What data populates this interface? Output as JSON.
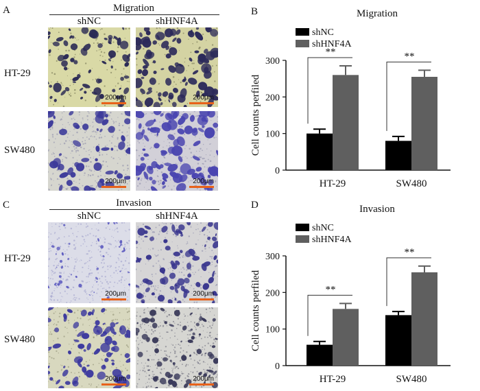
{
  "colors": {
    "shNC": "#000000",
    "shHNF4A": "#5f5f5f",
    "scale_bar": "#e8621a",
    "stain_dense": "#2e2a7a",
    "stain_light": "#7a78c8"
  },
  "panel_a": {
    "letter": "A",
    "title": "Migration",
    "columns": [
      "shNC",
      "shHNF4A"
    ],
    "rows": [
      "HT-29",
      "SW480"
    ],
    "scale_label": "200μm"
  },
  "panel_c": {
    "letter": "C",
    "title": "Invasion",
    "columns": [
      "shNC",
      "shHNF4A"
    ],
    "rows": [
      "HT-29",
      "SW480"
    ],
    "scale_label": "200μm"
  },
  "chart_data": [
    {
      "panel": "B",
      "type": "bar",
      "title": "Migration",
      "ylabel": "Cell counts perfiled",
      "categories": [
        "HT-29",
        "SW480"
      ],
      "ylim": [
        0,
        300
      ],
      "yticks": [
        0,
        100,
        200,
        300
      ],
      "series": [
        {
          "name": "shNC",
          "values": [
            100,
            80
          ],
          "errors": [
            12,
            12
          ]
        },
        {
          "name": "shHNF4A",
          "values": [
            260,
            255
          ],
          "errors": [
            25,
            18
          ]
        }
      ],
      "annotations": [
        "**",
        "**"
      ],
      "legend": "top-left"
    },
    {
      "panel": "D",
      "type": "bar",
      "title": "Invasion",
      "ylabel": "Cell counts perfiled",
      "categories": [
        "HT-29",
        "SW480"
      ],
      "ylim": [
        0,
        300
      ],
      "yticks": [
        0,
        100,
        200,
        300
      ],
      "series": [
        {
          "name": "shNC",
          "values": [
            57,
            138
          ],
          "errors": [
            9,
            10
          ]
        },
        {
          "name": "shHNF4A",
          "values": [
            155,
            255
          ],
          "errors": [
            15,
            17
          ]
        }
      ],
      "annotations": [
        "**",
        "**"
      ],
      "legend": "top-left"
    }
  ]
}
